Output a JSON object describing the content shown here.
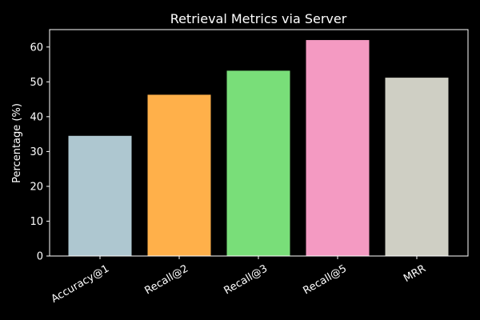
{
  "chart_data": {
    "type": "bar",
    "title": "Retrieval Metrics via Server",
    "xlabel": "",
    "ylabel": "Percentage (%)",
    "categories": [
      "Accuracy@1",
      "Recall@2",
      "Recall@3",
      "Recall@5",
      "MRR"
    ],
    "values": [
      34.5,
      46.3,
      53.2,
      62.0,
      51.2
    ],
    "colors": [
      "#aec7d0",
      "#ffb04a",
      "#79de79",
      "#f49ac2",
      "#cfcfc4"
    ],
    "ylim": [
      0,
      65
    ],
    "yticks": [
      0,
      10,
      20,
      30,
      40,
      50,
      60
    ],
    "grid": false,
    "legend": "none",
    "background": "#000000",
    "foreground": "#ffffff"
  }
}
